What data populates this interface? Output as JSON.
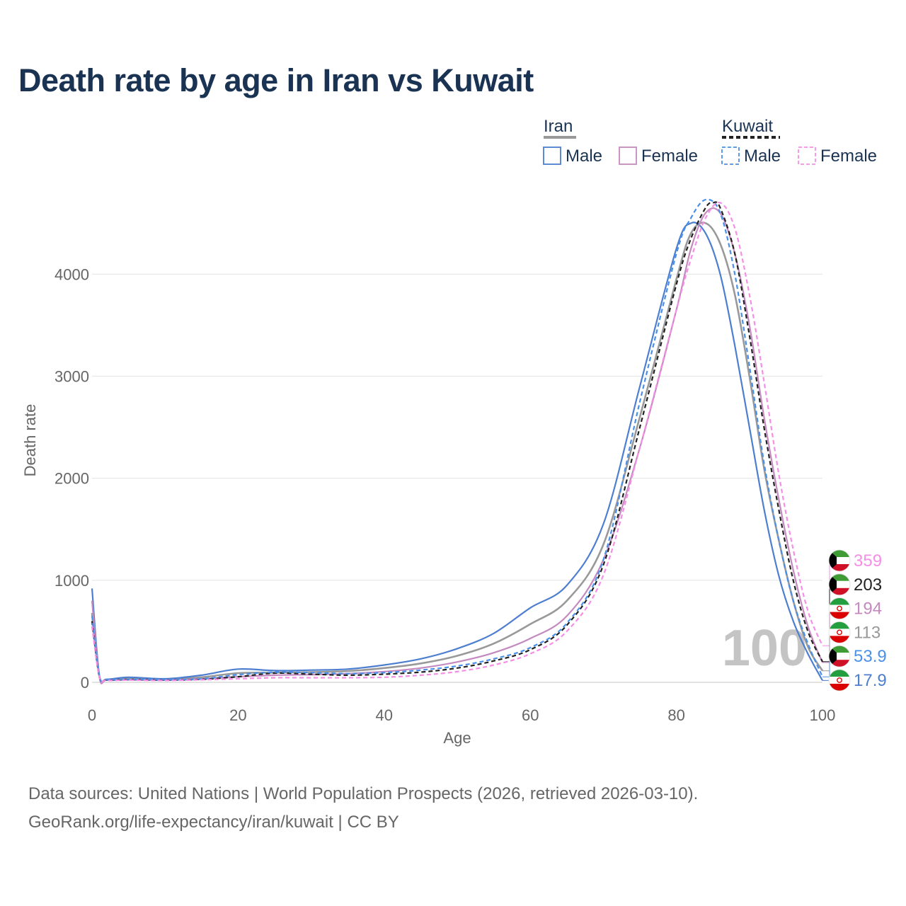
{
  "chart_data": {
    "type": "line",
    "title": "Death rate by age in Iran vs Kuwait",
    "xlabel": "Age",
    "ylabel": "Death rate",
    "xlim": [
      0,
      100
    ],
    "ylim": [
      0,
      4800
    ],
    "x_ticks": [
      0,
      20,
      40,
      60,
      80,
      100
    ],
    "y_ticks": [
      0,
      1000,
      2000,
      3000,
      4000
    ],
    "grid": true,
    "age_watermark": "100",
    "legend": {
      "placement": "top-right",
      "groups": [
        {
          "country": "Iran",
          "items": [
            "Male",
            "Female"
          ]
        },
        {
          "country": "Kuwait",
          "items": [
            "Male",
            "Female"
          ]
        }
      ]
    },
    "series": [
      {
        "name": "Iran (total)",
        "color": "#999999",
        "dash": "solid",
        "end_label": "113",
        "points": [
          [
            0,
            680
          ],
          [
            1,
            60
          ],
          [
            2,
            25
          ],
          [
            5,
            35
          ],
          [
            10,
            28
          ],
          [
            15,
            50
          ],
          [
            20,
            90
          ],
          [
            25,
            95
          ],
          [
            30,
            100
          ],
          [
            35,
            110
          ],
          [
            40,
            140
          ],
          [
            45,
            185
          ],
          [
            50,
            260
          ],
          [
            55,
            380
          ],
          [
            60,
            570
          ],
          [
            65,
            800
          ],
          [
            70,
            1350
          ],
          [
            75,
            2600
          ],
          [
            80,
            3950
          ],
          [
            82,
            4400
          ],
          [
            84,
            4500
          ],
          [
            86,
            4300
          ],
          [
            88,
            3800
          ],
          [
            90,
            3000
          ],
          [
            92,
            2100
          ],
          [
            94,
            1400
          ],
          [
            96,
            800
          ],
          [
            98,
            350
          ],
          [
            100,
            113
          ]
        ]
      },
      {
        "name": "Iran Male",
        "color": "#4d7ecf",
        "dash": "solid",
        "end_label": "17.9",
        "points": [
          [
            0,
            920
          ],
          [
            1,
            70
          ],
          [
            2,
            30
          ],
          [
            5,
            50
          ],
          [
            10,
            35
          ],
          [
            15,
            70
          ],
          [
            20,
            130
          ],
          [
            25,
            115
          ],
          [
            30,
            120
          ],
          [
            35,
            130
          ],
          [
            40,
            170
          ],
          [
            45,
            230
          ],
          [
            50,
            330
          ],
          [
            55,
            480
          ],
          [
            60,
            730
          ],
          [
            65,
            950
          ],
          [
            70,
            1550
          ],
          [
            75,
            2900
          ],
          [
            80,
            4250
          ],
          [
            82,
            4500
          ],
          [
            84,
            4400
          ],
          [
            86,
            4000
          ],
          [
            88,
            3300
          ],
          [
            90,
            2500
          ],
          [
            92,
            1700
          ],
          [
            94,
            1050
          ],
          [
            96,
            600
          ],
          [
            98,
            280
          ],
          [
            100,
            17.9
          ]
        ]
      },
      {
        "name": "Iran Female",
        "color": "#c48abf",
        "dash": "solid",
        "end_label": "194",
        "points": [
          [
            0,
            800
          ],
          [
            1,
            55
          ],
          [
            2,
            22
          ],
          [
            5,
            25
          ],
          [
            10,
            22
          ],
          [
            15,
            35
          ],
          [
            20,
            55
          ],
          [
            25,
            70
          ],
          [
            30,
            75
          ],
          [
            35,
            85
          ],
          [
            40,
            105
          ],
          [
            45,
            140
          ],
          [
            50,
            200
          ],
          [
            55,
            290
          ],
          [
            60,
            430
          ],
          [
            65,
            650
          ],
          [
            70,
            1200
          ],
          [
            75,
            2300
          ],
          [
            80,
            3650
          ],
          [
            82,
            4250
          ],
          [
            84,
            4600
          ],
          [
            86,
            4600
          ],
          [
            88,
            4200
          ],
          [
            90,
            3500
          ],
          [
            92,
            2600
          ],
          [
            94,
            1800
          ],
          [
            96,
            1100
          ],
          [
            98,
            550
          ],
          [
            100,
            194
          ]
        ]
      },
      {
        "name": "Kuwait (total)",
        "color": "#222222",
        "dash": "dashed",
        "end_label": "203",
        "points": [
          [
            0,
            600
          ],
          [
            1,
            60
          ],
          [
            2,
            22
          ],
          [
            5,
            28
          ],
          [
            10,
            22
          ],
          [
            15,
            30
          ],
          [
            20,
            55
          ],
          [
            25,
            90
          ],
          [
            30,
            80
          ],
          [
            35,
            70
          ],
          [
            40,
            80
          ],
          [
            45,
            100
          ],
          [
            50,
            140
          ],
          [
            55,
            210
          ],
          [
            60,
            320
          ],
          [
            65,
            560
          ],
          [
            70,
            1150
          ],
          [
            75,
            2500
          ],
          [
            80,
            3900
          ],
          [
            82,
            4350
          ],
          [
            84,
            4650
          ],
          [
            85,
            4700
          ],
          [
            86,
            4650
          ],
          [
            88,
            4200
          ],
          [
            90,
            3400
          ],
          [
            92,
            2500
          ],
          [
            94,
            1700
          ],
          [
            96,
            1000
          ],
          [
            98,
            500
          ],
          [
            100,
            203
          ]
        ]
      },
      {
        "name": "Kuwait Male",
        "color": "#4a90e8",
        "dash": "dashed",
        "end_label": "53.9",
        "points": [
          [
            0,
            650
          ],
          [
            1,
            65
          ],
          [
            2,
            25
          ],
          [
            5,
            30
          ],
          [
            10,
            25
          ],
          [
            15,
            35
          ],
          [
            20,
            75
          ],
          [
            25,
            100
          ],
          [
            30,
            95
          ],
          [
            35,
            85
          ],
          [
            40,
            95
          ],
          [
            45,
            120
          ],
          [
            50,
            160
          ],
          [
            55,
            230
          ],
          [
            60,
            340
          ],
          [
            65,
            580
          ],
          [
            70,
            1200
          ],
          [
            75,
            2750
          ],
          [
            80,
            4200
          ],
          [
            82,
            4550
          ],
          [
            84,
            4730
          ],
          [
            86,
            4600
          ],
          [
            88,
            4000
          ],
          [
            90,
            3100
          ],
          [
            92,
            2150
          ],
          [
            94,
            1400
          ],
          [
            96,
            800
          ],
          [
            98,
            380
          ],
          [
            100,
            53.9
          ]
        ]
      },
      {
        "name": "Kuwait Female",
        "color": "#f58ee6",
        "dash": "dashed",
        "end_label": "359",
        "points": [
          [
            0,
            550
          ],
          [
            1,
            55
          ],
          [
            2,
            20
          ],
          [
            5,
            22
          ],
          [
            10,
            18
          ],
          [
            15,
            25
          ],
          [
            20,
            35
          ],
          [
            25,
            45
          ],
          [
            30,
            45
          ],
          [
            35,
            45
          ],
          [
            40,
            50
          ],
          [
            45,
            70
          ],
          [
            50,
            105
          ],
          [
            55,
            170
          ],
          [
            60,
            280
          ],
          [
            65,
            500
          ],
          [
            70,
            1050
          ],
          [
            75,
            2300
          ],
          [
            80,
            3650
          ],
          [
            82,
            4150
          ],
          [
            84,
            4550
          ],
          [
            86,
            4700
          ],
          [
            88,
            4450
          ],
          [
            90,
            3800
          ],
          [
            92,
            2950
          ],
          [
            94,
            2050
          ],
          [
            96,
            1300
          ],
          [
            98,
            700
          ],
          [
            100,
            359
          ]
        ]
      }
    ]
  },
  "footer": {
    "source_line": "Data sources: United Nations | World Population Prospects (2026, retrieved 2026-03-10).",
    "url_line": "GeoRank.org/life-expectancy/iran/kuwait | CC BY"
  }
}
